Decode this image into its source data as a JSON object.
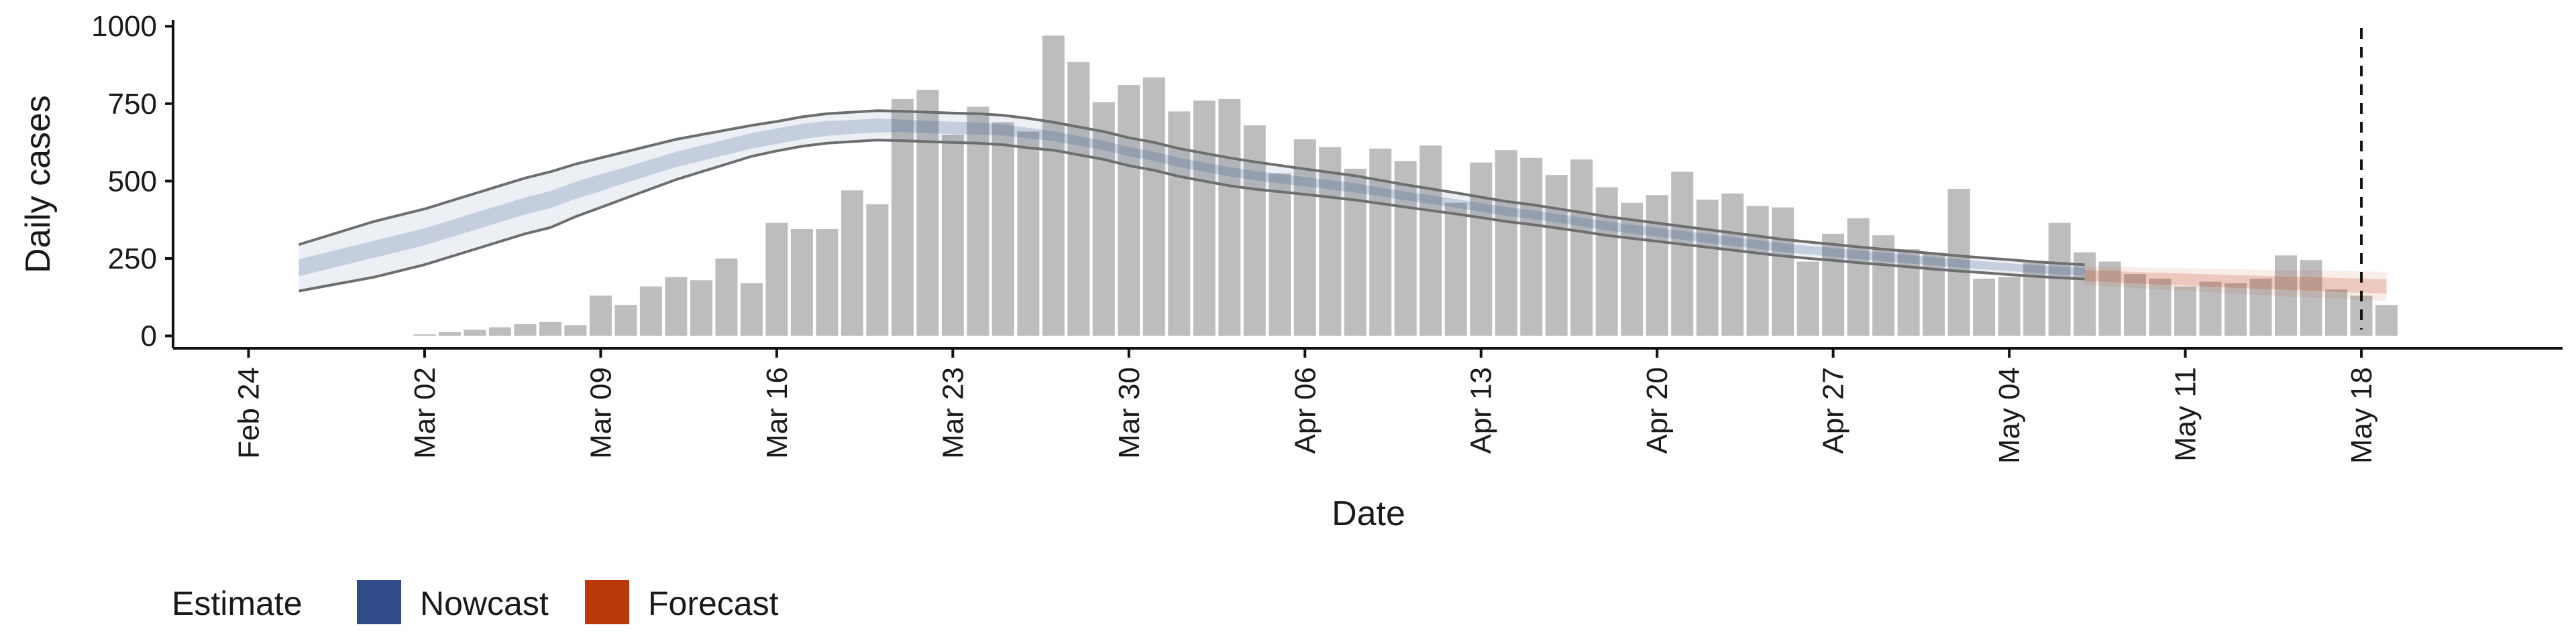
{
  "chart_data": {
    "type": "bar",
    "xlabel": "Date",
    "ylabel": "Daily cases",
    "x_range": [
      "2020-02-21",
      "2020-05-26"
    ],
    "ylim": [
      -40,
      1020
    ],
    "y_ticks": [
      0,
      250,
      500,
      750,
      1000
    ],
    "x_ticks": [
      {
        "date": "2020-02-24",
        "label": "Feb 24"
      },
      {
        "date": "2020-03-02",
        "label": "Mar 02"
      },
      {
        "date": "2020-03-09",
        "label": "Mar 09"
      },
      {
        "date": "2020-03-16",
        "label": "Mar 16"
      },
      {
        "date": "2020-03-23",
        "label": "Mar 23"
      },
      {
        "date": "2020-03-30",
        "label": "Mar 30"
      },
      {
        "date": "2020-04-06",
        "label": "Apr 06"
      },
      {
        "date": "2020-04-13",
        "label": "Apr 13"
      },
      {
        "date": "2020-04-20",
        "label": "Apr 20"
      },
      {
        "date": "2020-04-27",
        "label": "Apr 27"
      },
      {
        "date": "2020-05-04",
        "label": "May 04"
      },
      {
        "date": "2020-05-11",
        "label": "May 11"
      },
      {
        "date": "2020-05-18",
        "label": "May 18"
      }
    ],
    "grid": false,
    "legend_position": "bottom-left",
    "vline_date": "2020-05-18",
    "bar_color": "#bdbdbd",
    "bars": {
      "start_date": "2020-02-22",
      "values": [
        0,
        0,
        0,
        0,
        0,
        0,
        0,
        0,
        0,
        5,
        12,
        20,
        28,
        38,
        45,
        35,
        130,
        100,
        160,
        190,
        180,
        250,
        170,
        365,
        345,
        345,
        470,
        425,
        765,
        795,
        650,
        740,
        690,
        660,
        970,
        885,
        755,
        810,
        835,
        725,
        760,
        765,
        680,
        525,
        635,
        610,
        540,
        605,
        565,
        615,
        430,
        560,
        600,
        575,
        520,
        570,
        480,
        430,
        455,
        530,
        440,
        460,
        420,
        415,
        240,
        330,
        380,
        325,
        280,
        265,
        475,
        185,
        190,
        235,
        365,
        270,
        240,
        200,
        185,
        160,
        175,
        170,
        185,
        260,
        245,
        150,
        130,
        100
      ]
    },
    "series": [
      {
        "name": "Nowcast",
        "color": "#2f4b8a",
        "start_date": "2020-02-26",
        "median": [
          220,
          240,
          260,
          280,
          300,
          320,
          345,
          370,
          395,
          420,
          440,
          470,
          495,
          520,
          545,
          570,
          590,
          610,
          630,
          645,
          660,
          670,
          675,
          680,
          678,
          675,
          672,
          670,
          665,
          655,
          645,
          630,
          615,
          595,
          580,
          560,
          545,
          530,
          518,
          508,
          498,
          488,
          478,
          465,
          452,
          440,
          428,
          415,
          402,
          392,
          380,
          368,
          355,
          345,
          335,
          325,
          315,
          305,
          295,
          285,
          277,
          270,
          262,
          255,
          248,
          241,
          234,
          228,
          222,
          216,
          211,
          207
        ],
        "band50": [
          55,
          55,
          55,
          55,
          55,
          55,
          55,
          55,
          55,
          55,
          55,
          55,
          55,
          50,
          50,
          50,
          50,
          50,
          50,
          50,
          50,
          48,
          45,
          45,
          40,
          40,
          40,
          38,
          36,
          34,
          32,
          30,
          30,
          30,
          30,
          30,
          30,
          30,
          30,
          30,
          30,
          30,
          30,
          28,
          28,
          28,
          28,
          28,
          28,
          28,
          28,
          28,
          28,
          28,
          28,
          28,
          28,
          28,
          28,
          28,
          28,
          28,
          28,
          28,
          28,
          26,
          26,
          26,
          25,
          25,
          25,
          25
        ],
        "band90": [
          150,
          160,
          170,
          180,
          180,
          180,
          180,
          180,
          180,
          180,
          180,
          170,
          160,
          150,
          140,
          130,
          120,
          110,
          100,
          95,
          95,
          95,
          95,
          95,
          95,
          95,
          95,
          95,
          95,
          95,
          90,
          90,
          90,
          90,
          90,
          90,
          90,
          90,
          88,
          85,
          82,
          80,
          78,
          75,
          72,
          70,
          68,
          66,
          65,
          64,
          63,
          62,
          61,
          60,
          59,
          58,
          57,
          56,
          55,
          54,
          53,
          52,
          51,
          50,
          50,
          50,
          49,
          48,
          48,
          47,
          47,
          46
        ]
      },
      {
        "name": "Forecast",
        "color": "#b83a0a",
        "start_date": "2020-05-07",
        "median": [
          195,
          192,
          188,
          185,
          182,
          179,
          176,
          173,
          170,
          168,
          165,
          162,
          160
        ],
        "band50": [
          35,
          36,
          37,
          38,
          39,
          40,
          41,
          42,
          43,
          44,
          45,
          46,
          47
        ],
        "band90": [
          60,
          63,
          66,
          70,
          73,
          76,
          79,
          82,
          85,
          88,
          90,
          92,
          94
        ]
      }
    ],
    "legend": {
      "title": "Estimate",
      "items": [
        {
          "label": "Nowcast",
          "color": "#2f4b8a"
        },
        {
          "label": "Forecast",
          "color": "#b83a0a"
        }
      ]
    }
  }
}
